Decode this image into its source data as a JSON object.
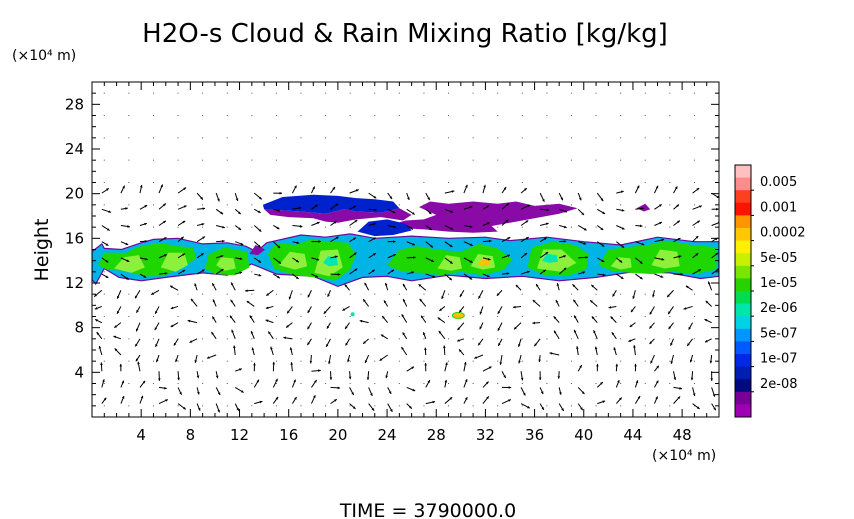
{
  "chart_data": {
    "type": "heatmap",
    "title": "H2O-s Cloud & Rain Mixing Ratio [kg/kg]",
    "ylabel": "Height",
    "y_unit": "(×10⁴ m)",
    "x_unit": "(×10⁴ m)",
    "xlim": [
      0,
      51
    ],
    "ylim": [
      0,
      30
    ],
    "x_ticks": [
      "4",
      "8",
      "12",
      "16",
      "20",
      "24",
      "28",
      "32",
      "36",
      "40",
      "44",
      "48"
    ],
    "y_ticks": [
      "4",
      "8",
      "12",
      "16",
      "20",
      "24",
      "28"
    ],
    "footer": "TIME = 3790000.0",
    "colorbar": {
      "labels": [
        "0.005",
        "0.001",
        "0.0002",
        "5e-05",
        "1e-05",
        "2e-06",
        "5e-07",
        "1e-07",
        "2e-08"
      ],
      "colors": [
        "#ffc0c0",
        "#ff8c8c",
        "#ff4020",
        "#ff1400",
        "#ff9600",
        "#ffc800",
        "#fff000",
        "#c8f000",
        "#78e600",
        "#28d200",
        "#00dc50",
        "#00e6aa",
        "#00d2e6",
        "#0096ff",
        "#005aff",
        "#0028e6",
        "#001eb4",
        "#000a80",
        "#780096",
        "#a000b4"
      ]
    }
  },
  "chart_regions": [
    {
      "level": "low",
      "points": [
        [
          0,
          14.8
        ],
        [
          0.8,
          15.5
        ],
        [
          1,
          15.1
        ],
        [
          2.4,
          15
        ],
        [
          4,
          15.6
        ],
        [
          5,
          15.9
        ],
        [
          7,
          16
        ],
        [
          9,
          15.5
        ],
        [
          11,
          15.6
        ],
        [
          12.5,
          15.3
        ],
        [
          13.4,
          14.8
        ],
        [
          14.2,
          15.6
        ],
        [
          17,
          16.3
        ],
        [
          19,
          16.1
        ],
        [
          21,
          16.4
        ],
        [
          23,
          16
        ],
        [
          26,
          16.2
        ],
        [
          29,
          16
        ],
        [
          32,
          16.1
        ],
        [
          34,
          15.8
        ],
        [
          37,
          16.1
        ],
        [
          40,
          15.7
        ],
        [
          43,
          15.4
        ],
        [
          46,
          16.1
        ],
        [
          49,
          15.7
        ],
        [
          51,
          15.7
        ],
        [
          51,
          12.6
        ],
        [
          49.5,
          12.4
        ],
        [
          47,
          12.9
        ],
        [
          44,
          13
        ],
        [
          41,
          12.5
        ],
        [
          38,
          12.2
        ],
        [
          35,
          12.6
        ],
        [
          32,
          12.4
        ],
        [
          29,
          12.7
        ],
        [
          26,
          12.2
        ],
        [
          24,
          12.6
        ],
        [
          22,
          12.5
        ],
        [
          20,
          11.7
        ],
        [
          18,
          12.6
        ],
        [
          15,
          12.8
        ],
        [
          13,
          13.7
        ],
        [
          11,
          12.7
        ],
        [
          9,
          12.9
        ],
        [
          6,
          12.5
        ],
        [
          4,
          12.2
        ],
        [
          2.2,
          12.5
        ],
        [
          1,
          13.3
        ],
        [
          0.3,
          11.9
        ],
        [
          0,
          12.3
        ]
      ]
    },
    {
      "level": "mid",
      "points": [
        [
          0.5,
          13.6
        ],
        [
          1,
          14.7
        ],
        [
          2.8,
          14.7
        ],
        [
          3.6,
          15.2
        ],
        [
          5.5,
          15.6
        ],
        [
          7,
          15.3
        ],
        [
          8.2,
          15.2
        ],
        [
          8.5,
          14.2
        ],
        [
          7.2,
          13.3
        ],
        [
          5.8,
          12.6
        ],
        [
          4.2,
          12.6
        ],
        [
          2.6,
          13.1
        ],
        [
          1.2,
          13.2
        ]
      ]
    },
    {
      "level": "mid",
      "points": [
        [
          9.2,
          13.3
        ],
        [
          9.5,
          14.6
        ],
        [
          10.8,
          15.2
        ],
        [
          12.6,
          14.8
        ],
        [
          12.8,
          13.4
        ],
        [
          11.6,
          12.7
        ],
        [
          10,
          12.8
        ]
      ]
    },
    {
      "level": "mid",
      "points": [
        [
          14.3,
          14.6
        ],
        [
          15,
          15.6
        ],
        [
          16.5,
          15.4
        ],
        [
          17.8,
          15.9
        ],
        [
          19.5,
          15.7
        ],
        [
          20.8,
          15.6
        ],
        [
          21.5,
          14.6
        ],
        [
          21,
          13.2
        ],
        [
          19.8,
          12.2
        ],
        [
          18.2,
          12.5
        ],
        [
          16.4,
          12.7
        ],
        [
          14.8,
          13.3
        ]
      ]
    },
    {
      "level": "mid",
      "points": [
        [
          24,
          13.6
        ],
        [
          25,
          15
        ],
        [
          26.5,
          15.3
        ],
        [
          28,
          15
        ],
        [
          30,
          14.8
        ],
        [
          31.5,
          15.5
        ],
        [
          33,
          15.1
        ],
        [
          34.2,
          14.1
        ],
        [
          33.5,
          13.2
        ],
        [
          31.8,
          12.7
        ],
        [
          30,
          13
        ],
        [
          28.5,
          12.7
        ],
        [
          26.8,
          12.9
        ],
        [
          25.2,
          13
        ]
      ]
    },
    {
      "level": "mid",
      "points": [
        [
          35.4,
          13.4
        ],
        [
          35.8,
          15.2
        ],
        [
          37.5,
          15.7
        ],
        [
          39.3,
          15.4
        ],
        [
          40.4,
          14.6
        ],
        [
          40.2,
          13.2
        ],
        [
          38.6,
          12.6
        ],
        [
          36.8,
          12.7
        ]
      ]
    },
    {
      "level": "mid",
      "points": [
        [
          41.2,
          13.6
        ],
        [
          42,
          15
        ],
        [
          43.5,
          15.2
        ],
        [
          45.2,
          15.4
        ],
        [
          46.8,
          15.8
        ],
        [
          48.8,
          15.4
        ],
        [
          50.8,
          15.2
        ],
        [
          50.8,
          13.2
        ],
        [
          49,
          12.8
        ],
        [
          47.2,
          13
        ],
        [
          45.6,
          12.8
        ],
        [
          43.8,
          12.9
        ],
        [
          42.2,
          13.1
        ]
      ]
    },
    {
      "level": "high",
      "points": [
        [
          1.8,
          13.3
        ],
        [
          2.6,
          14.3
        ],
        [
          3.8,
          14.5
        ],
        [
          4.3,
          13.4
        ],
        [
          3.2,
          12.9
        ]
      ]
    },
    {
      "level": "high",
      "points": [
        [
          5.6,
          13.4
        ],
        [
          6.2,
          14.7
        ],
        [
          7.5,
          14.7
        ],
        [
          7.8,
          13.6
        ],
        [
          6.8,
          13
        ]
      ]
    },
    {
      "level": "high",
      "points": [
        [
          10.1,
          13.6
        ],
        [
          10.5,
          14.3
        ],
        [
          11.5,
          14.2
        ],
        [
          11.7,
          13.3
        ],
        [
          10.8,
          13.1
        ]
      ]
    },
    {
      "level": "high",
      "points": [
        [
          15.2,
          13.6
        ],
        [
          16.1,
          14.8
        ],
        [
          17.3,
          14.6
        ],
        [
          17.5,
          13.5
        ],
        [
          16.5,
          13.2
        ]
      ]
    },
    {
      "level": "high",
      "points": [
        [
          18.1,
          12.9
        ],
        [
          18.6,
          14.9
        ],
        [
          20,
          15
        ],
        [
          20.4,
          13.4
        ],
        [
          19.3,
          12.6
        ]
      ]
    },
    {
      "level": "high",
      "points": [
        [
          28.1,
          13.3
        ],
        [
          28.8,
          14.5
        ],
        [
          29.9,
          14.3
        ],
        [
          30.1,
          13.3
        ],
        [
          29.2,
          13.1
        ]
      ]
    },
    {
      "level": "high",
      "points": [
        [
          30.8,
          13.5
        ],
        [
          31.4,
          14.6
        ],
        [
          32.6,
          14.4
        ],
        [
          32.8,
          13.4
        ],
        [
          31.8,
          13.2
        ]
      ]
    },
    {
      "level": "high",
      "points": [
        [
          36.2,
          13.3
        ],
        [
          36.7,
          15
        ],
        [
          38.2,
          15
        ],
        [
          39.4,
          13.8
        ],
        [
          38.1,
          13
        ]
      ]
    },
    {
      "level": "high",
      "points": [
        [
          42.2,
          13.5
        ],
        [
          42.8,
          14.3
        ],
        [
          43.8,
          14.2
        ],
        [
          43.9,
          13.4
        ],
        [
          43,
          13.2
        ]
      ]
    },
    {
      "level": "high",
      "points": [
        [
          45.5,
          13.6
        ],
        [
          46.2,
          15
        ],
        [
          47.6,
          14.8
        ],
        [
          47.8,
          13.5
        ],
        [
          46.6,
          13.3
        ]
      ]
    },
    {
      "level": "cyan",
      "points": [
        [
          18.8,
          13.8
        ],
        [
          19.2,
          14.4
        ],
        [
          19.9,
          14.3
        ],
        [
          20,
          13.6
        ],
        [
          19.3,
          13.5
        ]
      ]
    },
    {
      "level": "cyan",
      "points": [
        [
          36.6,
          14
        ],
        [
          37,
          14.6
        ],
        [
          37.8,
          14.5
        ],
        [
          37.9,
          13.9
        ],
        [
          37.2,
          13.8
        ]
      ]
    },
    {
      "level": "orange",
      "points": [
        [
          31.4,
          13.7
        ],
        [
          31.8,
          14.2
        ],
        [
          32.3,
          14.1
        ],
        [
          32.3,
          13.6
        ],
        [
          31.8,
          13.5
        ]
      ]
    },
    {
      "level": "blue",
      "points": [
        [
          13.9,
          19
        ],
        [
          15.5,
          19.7
        ],
        [
          18,
          19.9
        ],
        [
          20,
          19.8
        ],
        [
          21.5,
          19.6
        ],
        [
          23,
          19.5
        ],
        [
          24.5,
          19.3
        ],
        [
          25,
          18.7
        ],
        [
          23.5,
          18.3
        ],
        [
          21.5,
          18.4
        ],
        [
          20.5,
          18.6
        ],
        [
          19,
          18.2
        ],
        [
          17,
          18.4
        ],
        [
          15.5,
          18.5
        ],
        [
          14,
          18.6
        ]
      ]
    },
    {
      "level": "blue",
      "points": [
        [
          21.6,
          16.6
        ],
        [
          22.5,
          17.5
        ],
        [
          24,
          17.7
        ],
        [
          25.5,
          17.3
        ],
        [
          26,
          16.7
        ],
        [
          24.5,
          16.3
        ],
        [
          23,
          16.2
        ]
      ]
    },
    {
      "level": "purple",
      "points": [
        [
          14,
          18.6
        ],
        [
          15.5,
          18.5
        ],
        [
          17,
          18.4
        ],
        [
          19,
          18.2
        ],
        [
          20.5,
          18.6
        ],
        [
          21.5,
          18.4
        ],
        [
          23.5,
          18.3
        ],
        [
          25,
          18.7
        ],
        [
          26,
          18.1
        ],
        [
          25.3,
          17.6
        ],
        [
          23.5,
          17.9
        ],
        [
          21.5,
          17.7
        ],
        [
          20,
          17.4
        ],
        [
          19,
          17.5
        ],
        [
          18,
          17.8
        ],
        [
          16,
          17.9
        ],
        [
          14.5,
          18.1
        ]
      ]
    },
    {
      "level": "purple",
      "points": [
        [
          26.6,
          18.8
        ],
        [
          27.5,
          19.3
        ],
        [
          29,
          19.1
        ],
        [
          31,
          19.3
        ],
        [
          33,
          19.1
        ],
        [
          34.5,
          19.3
        ],
        [
          36,
          18.9
        ],
        [
          38,
          19.1
        ],
        [
          39.5,
          18.7
        ],
        [
          38,
          18.2
        ],
        [
          36,
          17.8
        ],
        [
          34,
          17.4
        ],
        [
          32.5,
          17.1
        ],
        [
          33,
          16.6
        ],
        [
          31,
          16.5
        ],
        [
          29,
          16.6
        ],
        [
          27,
          16.8
        ],
        [
          25.5,
          16.9
        ],
        [
          24,
          17.1
        ],
        [
          25.5,
          17.6
        ],
        [
          27,
          17.7
        ],
        [
          28,
          18.1
        ]
      ]
    },
    {
      "level": "purple",
      "points": [
        [
          44.3,
          18.7
        ],
        [
          45,
          19.1
        ],
        [
          45.4,
          18.6
        ],
        [
          44.9,
          18.4
        ]
      ]
    },
    {
      "level": "purple",
      "points": [
        [
          12.8,
          14.6
        ],
        [
          13.3,
          15.4
        ],
        [
          14.1,
          15
        ],
        [
          13.5,
          14.5
        ]
      ]
    }
  ]
}
